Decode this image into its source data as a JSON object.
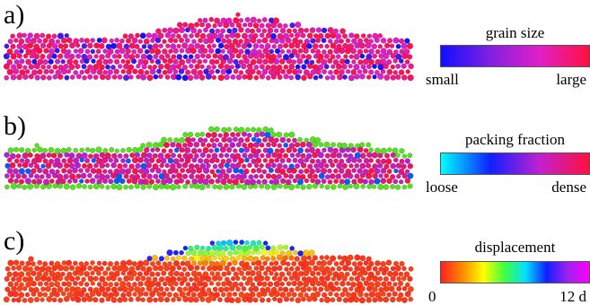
{
  "panels": [
    {
      "id": "a",
      "label": "a)",
      "coloring": "grain-size",
      "legend": {
        "title": "grain size",
        "min_label": "small",
        "max_label": "large",
        "gradient": [
          "#1010ff",
          "#8020e0",
          "#e020c8",
          "#ff1040"
        ]
      }
    },
    {
      "id": "b",
      "label": "b)",
      "coloring": "packing-fraction",
      "legend": {
        "title": "packing fraction",
        "min_label": "loose",
        "max_label": "dense",
        "gradient": [
          "#00ffff",
          "#1020ff",
          "#c020d0",
          "#ff1040"
        ]
      },
      "surface_color": "#55e020"
    },
    {
      "id": "c",
      "label": "c)",
      "coloring": "displacement",
      "legend": {
        "title": "displacement",
        "min_label": "0",
        "max_label": "12 d",
        "gradient": [
          "#ff2020",
          "#ff8800",
          "#ffff00",
          "#40ff40",
          "#00e0ff",
          "#1020ff",
          "#a020f0",
          "#ff00ff"
        ]
      }
    }
  ]
}
